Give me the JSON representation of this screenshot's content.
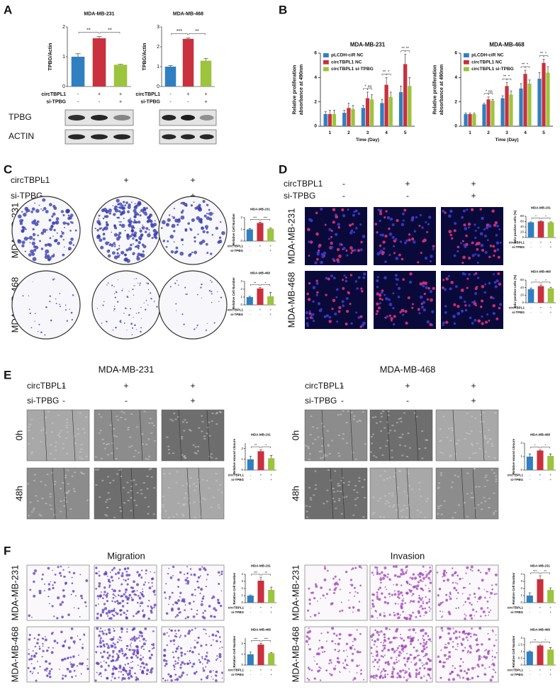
{
  "panels": [
    "A",
    "B",
    "C",
    "D",
    "E",
    "F"
  ],
  "conditions": {
    "names": [
      "circTBPL1",
      "si-TPBG"
    ],
    "signs": [
      [
        "-",
        "+",
        "+"
      ],
      [
        "-",
        "-",
        "+"
      ]
    ]
  },
  "panel_a": {
    "blots": [
      "TPBG",
      "ACTIN"
    ]
  },
  "panel_c": {
    "rows": [
      "MDA-MB-231",
      "MDA-MB-468"
    ]
  },
  "panel_d": {
    "rows": [
      "MDA-MB-231",
      "MDA-MB-468"
    ]
  },
  "panel_e": {
    "titles": [
      "MDA-MB-231",
      "MDA-MB-468"
    ],
    "rows": [
      "0h",
      "48h"
    ]
  },
  "panel_f": {
    "titles": [
      "Migration",
      "Invasion"
    ],
    "rows": [
      "MDA-MB-231",
      "MDA-MB-468"
    ]
  },
  "chart_data": [
    {
      "type": "bar",
      "title": "MDA-MB-231",
      "y_label": "TPBG/Actin",
      "values": [
        1,
        1.62,
        0.73
      ],
      "errors": [
        0.1,
        0.05,
        0.02
      ],
      "colors": [
        "#2f7fc1",
        "#c8313d",
        "#9cc43d"
      ],
      "ylim": [
        0,
        2
      ],
      "yticks": [
        0,
        1,
        2
      ],
      "significance": [
        "**",
        "**"
      ]
    },
    {
      "type": "bar",
      "title": "MDA-MB-468",
      "y_label": "TPBG/Actin",
      "values": [
        1,
        2.4,
        1.3
      ],
      "errors": [
        0.05,
        0.04,
        0.12
      ],
      "colors": [
        "#2f7fc1",
        "#c8313d",
        "#9cc43d"
      ],
      "ylim": [
        0,
        3
      ],
      "yticks": [
        0,
        1,
        2,
        3
      ],
      "significance": [
        "***",
        "**"
      ]
    },
    {
      "type": "grouped_bar",
      "title": "MDA-MB-231",
      "y_label": [
        "Relative proliferation",
        "absorbance at 490nm"
      ],
      "x_label": "Time (Day)",
      "categories": [
        "1",
        "2",
        "3",
        "4",
        "5"
      ],
      "series": [
        {
          "name": "pLCDH-ciR NC",
          "color": "#2f7fc1",
          "values": [
            1,
            1.1,
            1.5,
            1.9,
            2.8
          ],
          "errors": [
            0.2,
            0.2,
            0.2,
            0.3,
            0.5
          ]
        },
        {
          "name": "circTBPL1 NC",
          "color": "#c8313d",
          "values": [
            1,
            1.5,
            2.3,
            3.4,
            5.1
          ],
          "errors": [
            0.3,
            0.4,
            0.5,
            0.6,
            0.8
          ]
        },
        {
          "name": "circTBPL1 si-TPBG",
          "color": "#9cc43d",
          "values": [
            1,
            1.4,
            2.2,
            2.4,
            3.3
          ],
          "errors": [
            0.3,
            0.3,
            0.4,
            0.4,
            0.7
          ]
        }
      ],
      "ylim": [
        0,
        6
      ],
      "yticks": [
        0,
        2,
        4,
        6
      ],
      "annotations": [
        null,
        null,
        [
          "*",
          "ns"
        ],
        [
          "**",
          "*"
        ],
        [
          "**",
          "**"
        ]
      ]
    },
    {
      "type": "grouped_bar",
      "title": "MDA-MB-468",
      "y_label": [
        "Relative proliferation",
        "absorbance at 490nm"
      ],
      "x_label": "Time (Day)",
      "categories": [
        "1",
        "2",
        "3",
        "4",
        "5"
      ],
      "series": [
        {
          "name": "pLCDH-ciR NC",
          "color": "#2f7fc1",
          "values": [
            1,
            1.8,
            2.3,
            3.1,
            3.9
          ],
          "errors": [
            0.1,
            0.1,
            0.2,
            0.4,
            0.5
          ]
        },
        {
          "name": "circTBPL1 NC",
          "color": "#c8313d",
          "values": [
            1,
            2.2,
            3.3,
            4.3,
            5.2
          ],
          "errors": [
            0.1,
            0.2,
            0.3,
            0.3,
            0.3
          ]
        },
        {
          "name": "circTBPL1 si-TPBG",
          "color": "#9cc43d",
          "values": [
            1,
            2.1,
            2.6,
            3.5,
            4.4
          ],
          "errors": [
            0.1,
            0.1,
            0.3,
            0.3,
            0.5
          ]
        }
      ],
      "ylim": [
        0,
        6
      ],
      "yticks": [
        0,
        2,
        4,
        6
      ],
      "annotations": [
        null,
        [
          "*",
          "ns"
        ],
        [
          "**",
          "*"
        ],
        [
          "**",
          "*"
        ],
        [
          "**",
          "*"
        ]
      ]
    },
    {
      "type": "bar",
      "title": "MDA-MB-231",
      "y_label": "Relative Cell Number",
      "values": [
        1,
        1.55,
        1.05
      ],
      "errors": [
        0.08,
        0.06,
        0.05
      ],
      "colors": [
        "#2f7fc1",
        "#c8313d",
        "#9cc43d"
      ],
      "ylim": [
        0,
        2
      ],
      "yticks": [
        0,
        1,
        2
      ],
      "significance": [
        "***",
        "***"
      ]
    },
    {
      "type": "bar",
      "title": "MDA-MB-468",
      "y_label": "Relative Cell Number",
      "values": [
        1,
        2.1,
        1.1
      ],
      "errors": [
        0.1,
        0.15,
        0.5
      ],
      "colors": [
        "#2f7fc1",
        "#c8313d",
        "#9cc43d"
      ],
      "ylim": [
        0,
        3
      ],
      "yticks": [
        0,
        1,
        2,
        3
      ],
      "significance": [
        "**",
        "*"
      ]
    },
    {
      "type": "bar",
      "title": "MDA-MB-231",
      "y_label": "EdU positive cells (%)",
      "values": [
        57,
        61,
        57
      ],
      "errors": [
        2,
        2,
        2
      ],
      "colors": [
        "#2f7fc1",
        "#c8313d",
        "#9cc43d"
      ],
      "ylim": [
        0,
        80
      ],
      "yticks": [
        0,
        20,
        40,
        60,
        80
      ],
      "significance": [
        "*",
        "*"
      ]
    },
    {
      "type": "bar",
      "title": "MDA-MB-468",
      "y_label": "EdU positive cells (%)",
      "values": [
        36,
        44,
        38
      ],
      "errors": [
        3,
        3,
        3
      ],
      "colors": [
        "#2f7fc1",
        "#c8313d",
        "#9cc43d"
      ],
      "ylim": [
        0,
        60
      ],
      "yticks": [
        0,
        20,
        40,
        60
      ],
      "significance": [
        "*",
        "*"
      ]
    },
    {
      "type": "bar",
      "title": "MDA-MB-231",
      "y_label": "Relative wound closure",
      "values": [
        1,
        1.75,
        1.1
      ],
      "errors": [
        0.3,
        0.15,
        0.25
      ],
      "colors": [
        "#2f7fc1",
        "#c8313d",
        "#9cc43d"
      ],
      "ylim": [
        0,
        2.5
      ],
      "yticks": [
        0,
        1,
        2
      ],
      "significance": [
        "**",
        "*"
      ]
    },
    {
      "type": "bar",
      "title": "MDA-MB-468",
      "y_label": "Relative wound closure",
      "values": [
        1,
        1.45,
        1.05
      ],
      "errors": [
        0.2,
        0.05,
        0.15
      ],
      "colors": [
        "#2f7fc1",
        "#c8313d",
        "#9cc43d"
      ],
      "ylim": [
        0,
        2
      ],
      "yticks": [
        0,
        1,
        2
      ],
      "significance": [
        "*",
        "*"
      ]
    },
    {
      "type": "bar",
      "title": "MDA-MB-231",
      "y_label": "Relative Cell Number",
      "values": [
        1,
        3.1,
        1.8
      ],
      "errors": [
        0.1,
        0.5,
        0.4
      ],
      "colors": [
        "#2f7fc1",
        "#c8313d",
        "#9cc43d"
      ],
      "ylim": [
        0,
        4
      ],
      "yticks": [
        0,
        1,
        2,
        3,
        4
      ],
      "significance": [
        "***",
        "**"
      ]
    },
    {
      "type": "bar",
      "title": "MDA-MB-468",
      "y_label": "Relative Cell Number",
      "values": [
        1,
        1.9,
        1.1
      ],
      "errors": [
        0.2,
        0.1,
        0.05
      ],
      "colors": [
        "#2f7fc1",
        "#c8313d",
        "#9cc43d"
      ],
      "ylim": [
        0,
        2.5
      ],
      "yticks": [
        0,
        1,
        2
      ],
      "significance": [
        "***",
        "***"
      ]
    },
    {
      "type": "bar",
      "title": "MDA-MB-231",
      "y_label": "Relative Cell Number",
      "values": [
        1,
        3.3,
        1.8
      ],
      "errors": [
        0.4,
        0.5,
        0.3
      ],
      "colors": [
        "#2f7fc1",
        "#c8313d",
        "#9cc43d"
      ],
      "ylim": [
        0,
        4
      ],
      "yticks": [
        0,
        1,
        2,
        3,
        4
      ],
      "significance": [
        "***",
        "**"
      ]
    },
    {
      "type": "bar",
      "title": "MDA-MB-468",
      "y_label": "Relative Cell Number",
      "values": [
        1,
        1.45,
        1.15
      ],
      "errors": [
        0.05,
        0.05,
        0.15
      ],
      "colors": [
        "#2f7fc1",
        "#c8313d",
        "#9cc43d"
      ],
      "ylim": [
        0,
        2
      ],
      "yticks": [
        0,
        0.5,
        1,
        1.5,
        2
      ],
      "significance": [
        "**",
        "*"
      ]
    }
  ]
}
